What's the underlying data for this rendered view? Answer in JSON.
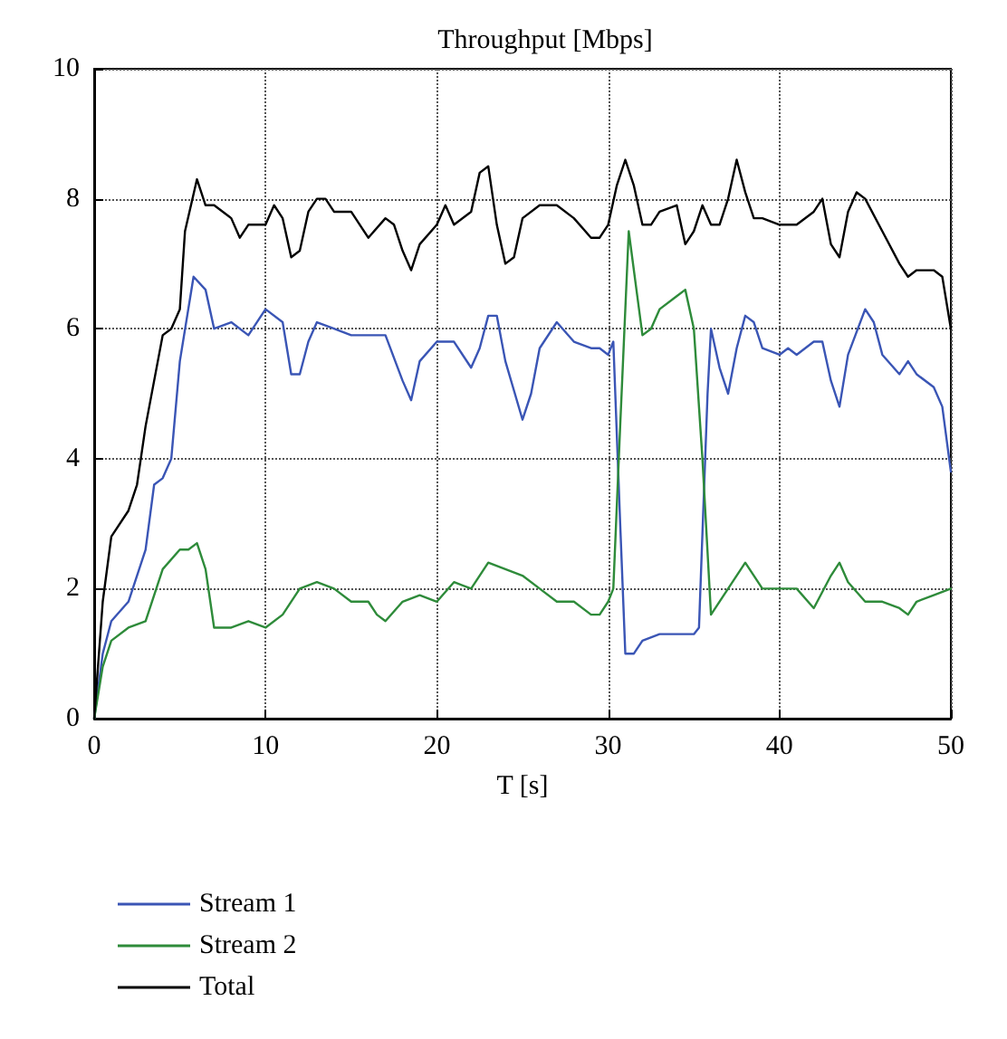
{
  "chart_data": {
    "type": "line",
    "title": "Throughput [Mbps]",
    "xlabel": "T [s]",
    "xlim": [
      0,
      50
    ],
    "xticks": [
      0,
      10,
      20,
      30,
      40,
      50
    ],
    "ylim": [
      0,
      10
    ],
    "yticks": [
      0,
      2,
      4,
      6,
      8,
      10
    ],
    "grid": true,
    "legend": "bottom left",
    "marker": "none",
    "line_style": "solid",
    "series": [
      {
        "name": "Stream 1",
        "color": "#3a55b5",
        "x": [
          0,
          0.5,
          1,
          2,
          3,
          3.5,
          4,
          4.5,
          5,
          5.8,
          6.5,
          7,
          8,
          9,
          10,
          11,
          11.5,
          12,
          12.5,
          13,
          14,
          15,
          16,
          17,
          18,
          18.5,
          19,
          20,
          21,
          22,
          22.5,
          23,
          23.5,
          24,
          25,
          25.5,
          26,
          27,
          28,
          29,
          29.5,
          30,
          30.3,
          30.7,
          31,
          31.5,
          32,
          33,
          34,
          35,
          35.3,
          35.8,
          36,
          36.5,
          37,
          37.5,
          38,
          38.5,
          39,
          40,
          40.5,
          41,
          42,
          42.5,
          43,
          43.5,
          44,
          45,
          45.5,
          46,
          47,
          47.5,
          48,
          49,
          49.5,
          50
        ],
        "values": [
          0,
          1.0,
          1.5,
          1.8,
          2.6,
          3.6,
          3.7,
          4.0,
          5.5,
          6.8,
          6.6,
          6.0,
          6.1,
          5.9,
          6.3,
          6.1,
          5.3,
          5.3,
          5.8,
          6.1,
          6.0,
          5.9,
          5.9,
          5.9,
          5.2,
          4.9,
          5.5,
          5.8,
          5.8,
          5.4,
          5.7,
          6.2,
          6.2,
          5.5,
          4.6,
          5.0,
          5.7,
          6.1,
          5.8,
          5.7,
          5.7,
          5.6,
          5.8,
          3.0,
          1.0,
          1.0,
          1.2,
          1.3,
          1.3,
          1.3,
          1.4,
          5.0,
          6.0,
          5.4,
          5.0,
          5.7,
          6.2,
          6.1,
          5.7,
          5.6,
          5.7,
          5.6,
          5.8,
          5.8,
          5.2,
          4.8,
          5.6,
          6.3,
          6.1,
          5.6,
          5.3,
          5.5,
          5.3,
          5.1,
          4.8,
          3.8
        ]
      },
      {
        "name": "Stream 2",
        "color": "#2e8b3a",
        "x": [
          0,
          0.5,
          1,
          2,
          3,
          4,
          5,
          5.5,
          6,
          6.5,
          7,
          8,
          9,
          10,
          11,
          12,
          13,
          14,
          15,
          16,
          16.5,
          17,
          18,
          19,
          20,
          21,
          22,
          23,
          24,
          25,
          26,
          27,
          28,
          29,
          29.5,
          30,
          30.3,
          30.7,
          31.2,
          31.7,
          32,
          32.5,
          33,
          34,
          34.5,
          35,
          35.5,
          36,
          37,
          38,
          39,
          40,
          41,
          42,
          43,
          43.5,
          44,
          45,
          46,
          47,
          47.5,
          48,
          49,
          50
        ],
        "values": [
          0,
          0.8,
          1.2,
          1.4,
          1.5,
          2.3,
          2.6,
          2.6,
          2.7,
          2.3,
          1.4,
          1.4,
          1.5,
          1.4,
          1.6,
          2.0,
          2.1,
          2.0,
          1.8,
          1.8,
          1.6,
          1.5,
          1.8,
          1.9,
          1.8,
          2.1,
          2.0,
          2.4,
          2.3,
          2.2,
          2.0,
          1.8,
          1.8,
          1.6,
          1.6,
          1.8,
          2.0,
          4.5,
          7.5,
          6.5,
          5.9,
          6.0,
          6.3,
          6.5,
          6.6,
          6.0,
          4.0,
          1.6,
          2.0,
          2.4,
          2.0,
          2.0,
          2.0,
          1.7,
          2.2,
          2.4,
          2.1,
          1.8,
          1.8,
          1.7,
          1.6,
          1.8,
          1.9,
          2.0
        ]
      },
      {
        "name": "Total",
        "color": "#000000",
        "x": [
          0,
          0.5,
          1,
          2,
          2.5,
          3,
          4,
          4.5,
          5,
          5.3,
          6,
          6.5,
          7,
          8,
          8.5,
          9,
          10,
          10.5,
          11,
          11.5,
          12,
          12.5,
          13,
          13.5,
          14,
          15,
          16,
          17,
          17.5,
          18,
          18.5,
          19,
          20,
          20.5,
          21,
          22,
          22.5,
          23,
          23.5,
          24,
          24.5,
          25,
          26,
          27,
          28,
          29,
          29.5,
          30,
          30.5,
          31,
          31.5,
          32,
          32.5,
          33,
          34,
          34.5,
          35,
          35.5,
          36,
          36.5,
          37,
          37.5,
          38,
          38.5,
          39,
          40,
          41,
          42,
          42.5,
          43,
          43.5,
          44,
          44.5,
          45,
          46,
          47,
          47.5,
          48,
          49,
          49.5,
          50
        ],
        "values": [
          0,
          1.8,
          2.8,
          3.2,
          3.6,
          4.5,
          5.9,
          6.0,
          6.3,
          7.5,
          8.3,
          7.9,
          7.9,
          7.7,
          7.4,
          7.6,
          7.6,
          7.9,
          7.7,
          7.1,
          7.2,
          7.8,
          8.0,
          8.0,
          7.8,
          7.8,
          7.4,
          7.7,
          7.6,
          7.2,
          6.9,
          7.3,
          7.6,
          7.9,
          7.6,
          7.8,
          8.4,
          8.5,
          7.6,
          7.0,
          7.1,
          7.7,
          7.9,
          7.9,
          7.7,
          7.4,
          7.4,
          7.6,
          8.2,
          8.6,
          8.2,
          7.6,
          7.6,
          7.8,
          7.9,
          7.3,
          7.5,
          7.9,
          7.6,
          7.6,
          8.0,
          8.6,
          8.1,
          7.7,
          7.7,
          7.6,
          7.6,
          7.8,
          8.0,
          7.3,
          7.1,
          7.8,
          8.1,
          8.0,
          7.5,
          7.0,
          6.8,
          6.9,
          6.9,
          6.8,
          6.0
        ]
      }
    ]
  }
}
